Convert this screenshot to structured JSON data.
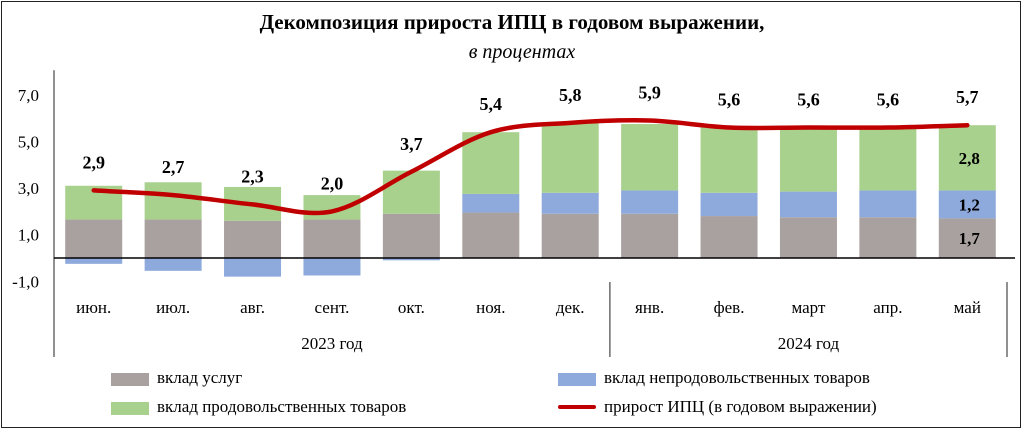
{
  "title": "Декомпозиция прироста ИПЦ  в годовом выражении,",
  "subtitle": "в процентах",
  "chart_data": {
    "type": "bar",
    "stacked": true,
    "categories": [
      "июн.",
      "июл.",
      "авг.",
      "сент.",
      "окт.",
      "ноя.",
      "дек.",
      "янв.",
      "фев.",
      "март",
      "апр.",
      "май"
    ],
    "year_groups": [
      {
        "label": "2023 год",
        "span": 7
      },
      {
        "label": "2024 год",
        "span": 5
      }
    ],
    "yticks": [
      "7,0",
      "5,0",
      "3,0",
      "1,0",
      "-1,0"
    ],
    "ytick_values": [
      7,
      5,
      3,
      1,
      -1
    ],
    "ylim": [
      -1.8,
      7.8
    ],
    "series": [
      {
        "name": "вклад услуг",
        "color": "#a9a19f",
        "values": [
          1.65,
          1.65,
          1.6,
          1.65,
          1.9,
          1.95,
          1.9,
          1.9,
          1.8,
          1.75,
          1.75,
          1.7
        ]
      },
      {
        "name": "вклад непродовольственных товаров",
        "color": "#8eaadc",
        "values": [
          -0.25,
          -0.55,
          -0.8,
          -0.75,
          -0.1,
          0.8,
          0.9,
          1.0,
          1.0,
          1.1,
          1.15,
          1.2
        ]
      },
      {
        "name": "вклад продовольственных товаров",
        "color": "#a9d18e",
        "values": [
          1.45,
          1.6,
          1.45,
          1.05,
          1.85,
          2.65,
          3.0,
          2.85,
          2.8,
          2.75,
          2.75,
          2.8
        ]
      }
    ],
    "line": {
      "name": "прирост ИПЦ (в годовом выражении)",
      "color": "#c00000",
      "values": [
        2.9,
        2.7,
        2.3,
        2.0,
        3.7,
        5.4,
        5.8,
        5.9,
        5.6,
        5.6,
        5.6,
        5.7
      ]
    },
    "line_labels": [
      "2,9",
      "2,7",
      "2,3",
      "2,0",
      "3,7",
      "5,4",
      "5,8",
      "5,9",
      "5,6",
      "5,6",
      "5,6",
      "5,7"
    ],
    "segment_labels_last": [
      "1,7",
      "1,2",
      "2,8"
    ]
  }
}
